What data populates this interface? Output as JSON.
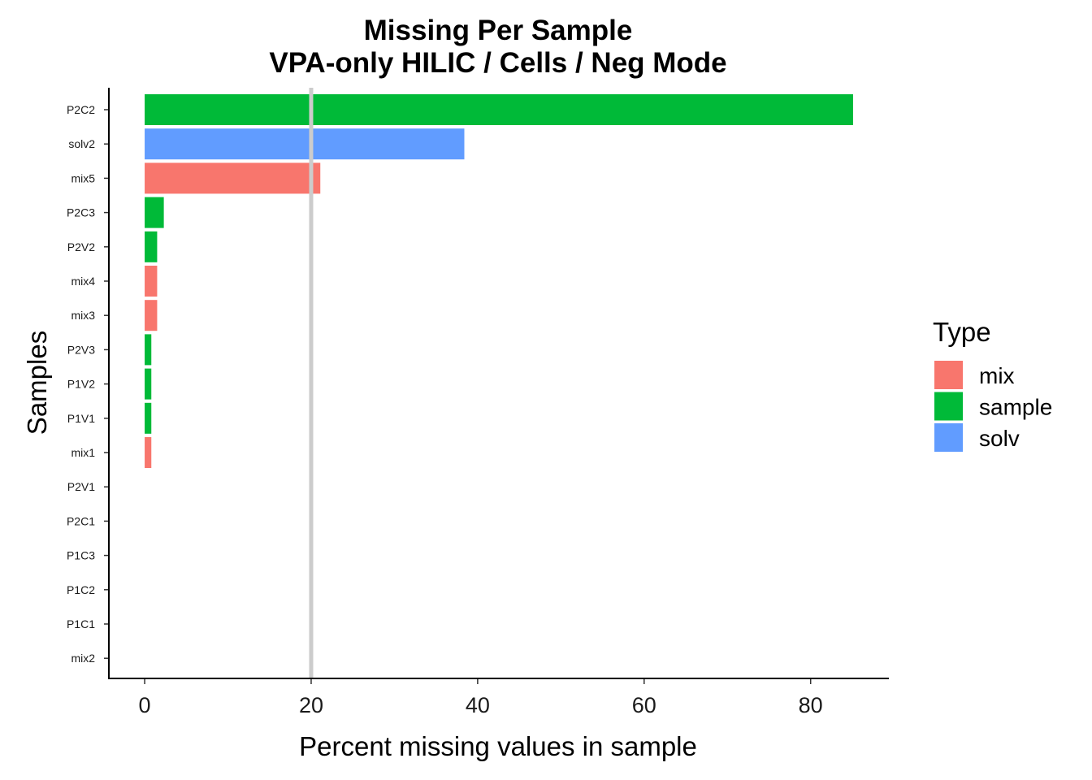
{
  "chart_data": {
    "type": "bar",
    "orientation": "horizontal",
    "title": "Missing Per Sample",
    "subtitle": "VPA-only HILIC / Cells / Neg Mode",
    "xlabel": "Percent missing values in sample",
    "ylabel": "Samples",
    "xlim": [
      -4.3,
      89.4
    ],
    "xticks": [
      0,
      20,
      40,
      60,
      80
    ],
    "reference_line_x": 20,
    "reference_line_color": "#cccccc",
    "categories": [
      "P2C2",
      "solv2",
      "mix5",
      "P2C3",
      "P2V2",
      "mix4",
      "mix3",
      "P2V3",
      "P1V2",
      "P1V1",
      "mix1",
      "P2V1",
      "P2C1",
      "P1C3",
      "P1C2",
      "P1C1",
      "mix2"
    ],
    "values": [
      85.1,
      38.4,
      21.1,
      2.3,
      1.5,
      1.5,
      1.5,
      0.8,
      0.8,
      0.8,
      0.8,
      0,
      0,
      0,
      0,
      0,
      0
    ],
    "types": [
      "sample",
      "solv",
      "mix",
      "sample",
      "sample",
      "mix",
      "mix",
      "sample",
      "sample",
      "sample",
      "mix",
      "sample",
      "sample",
      "sample",
      "sample",
      "sample",
      "mix"
    ],
    "legend": {
      "title": "Type",
      "position": "right",
      "items": [
        {
          "label": "mix",
          "color": "#F8766D"
        },
        {
          "label": "sample",
          "color": "#00BA38"
        },
        {
          "label": "solv",
          "color": "#619CFF"
        }
      ]
    },
    "grid": false
  }
}
